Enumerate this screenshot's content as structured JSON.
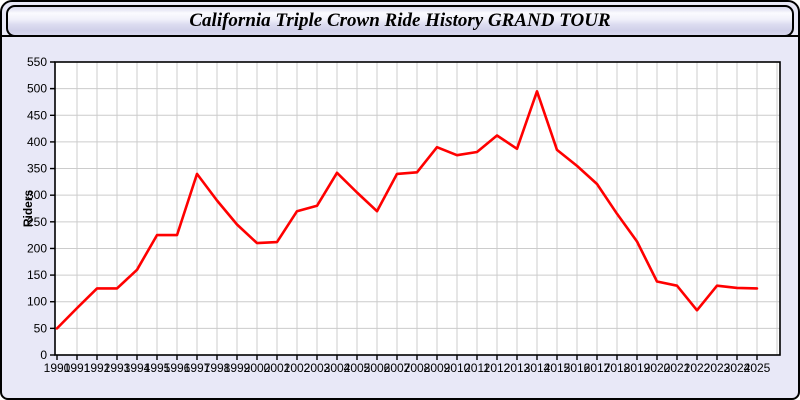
{
  "header": {
    "title": "California Triple Crown Ride History GRAND TOUR"
  },
  "chart_data": {
    "type": "line",
    "title": "California Triple Crown Ride History GRAND TOUR",
    "x": [
      1990,
      1991,
      1992,
      1993,
      1994,
      1995,
      1996,
      1997,
      1998,
      1999,
      2000,
      2001,
      2002,
      2003,
      2004,
      2005,
      2006,
      2007,
      2008,
      2009,
      2010,
      2011,
      2012,
      2013,
      2014,
      2015,
      2016,
      2017,
      2018,
      2019,
      2020,
      2021,
      2022,
      2023,
      2024,
      2025
    ],
    "series": [
      {
        "name": "Riders",
        "color": "#FF0000",
        "values": [
          50,
          88,
          125,
          125,
          160,
          225,
          225,
          340,
          290,
          245,
          210,
          212,
          270,
          280,
          342,
          305,
          270,
          340,
          343,
          390,
          375,
          381,
          412,
          387,
          495,
          385,
          355,
          321,
          265,
          213,
          138,
          130,
          84,
          130,
          126,
          125
        ]
      }
    ],
    "xlabel": "",
    "ylabel": "Riders",
    "ylim": [
      0,
      550
    ],
    "ytick_step": 50,
    "y_ticks": [
      0,
      50,
      100,
      150,
      200,
      250,
      300,
      350,
      400,
      450,
      500,
      550
    ],
    "grid": true,
    "legend_position": "none",
    "plot_bg": "#FFFFFF",
    "grid_color": "#cccccc",
    "axis_color": "#000000"
  },
  "colors": {
    "page_bg": "#e8e8f7",
    "line": "#FF0000",
    "border": "#000000"
  }
}
